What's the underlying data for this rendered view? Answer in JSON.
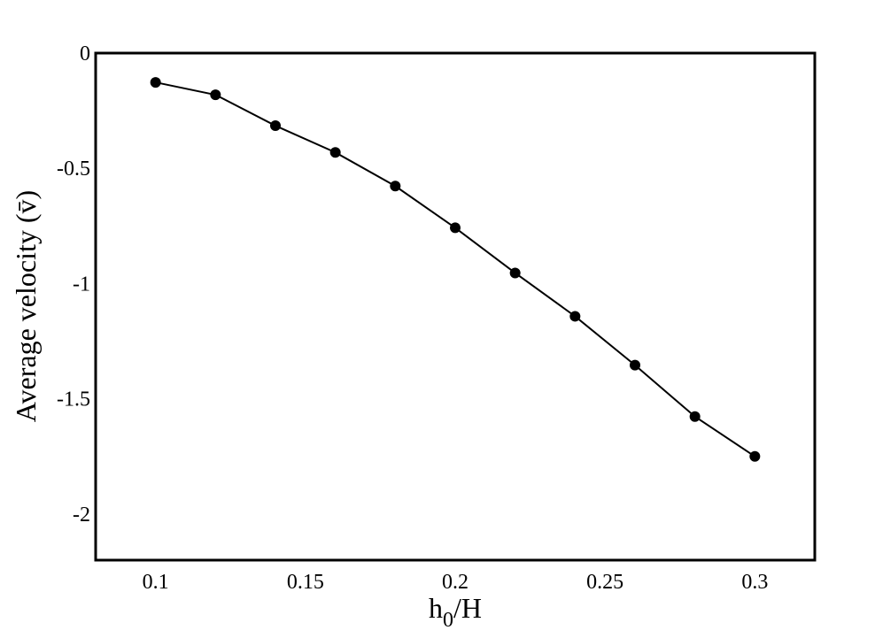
{
  "chart_data": {
    "type": "line",
    "xlabel": {
      "main": "h",
      "sub": "0",
      "rest": "/H"
    },
    "ylabel": "Average velocity (v̄)",
    "x": [
      0.1,
      0.12,
      0.14,
      0.16,
      0.18,
      0.2,
      0.22,
      0.24,
      0.26,
      0.28,
      0.3
    ],
    "series": [
      {
        "color": "#000000",
        "values": [
          -0.127,
          -0.181,
          -0.315,
          -0.431,
          -0.577,
          -0.758,
          -0.954,
          -1.142,
          -1.354,
          -1.577,
          -1.75
        ]
      }
    ],
    "xlim": [
      0.08,
      0.32
    ],
    "ylim": [
      -2.2,
      0
    ],
    "xticks": [
      0.1,
      0.15,
      0.2,
      0.25,
      0.3
    ],
    "yticks": [
      0,
      -0.5,
      -1,
      -1.5,
      -2
    ],
    "grid": false
  }
}
